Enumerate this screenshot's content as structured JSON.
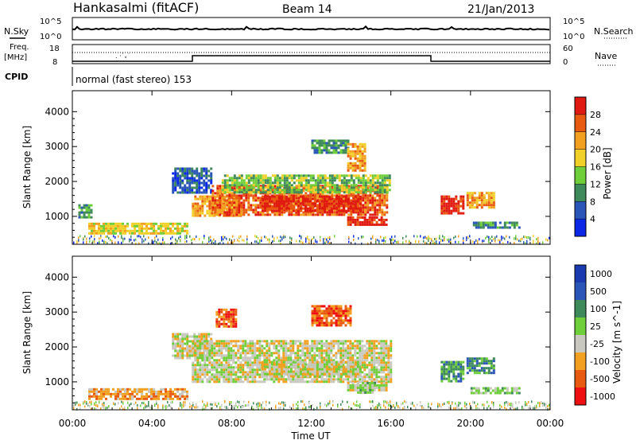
{
  "header": {
    "station": "Hankasalmi (fitACF)",
    "beam": "Beam 14",
    "date": "21/Jan/2013"
  },
  "top_panels": {
    "nsky_label": "N.Sky",
    "nsky_ticks": [
      "10^5",
      "10^0"
    ],
    "nsearch_label": "N.Search",
    "nsearch_ticks": [
      "10^5",
      "10^0"
    ],
    "freq_label": "Freq.",
    "freq_unit": "[MHz]",
    "freq_ticks": [
      "18",
      "8"
    ],
    "nave_label": "Nave",
    "nave_ticks": [
      "60",
      "0"
    ],
    "cpid_label": "CPID",
    "cpid_text": "normal (fast stereo) 153"
  },
  "colors": {
    "power": [
      "#0a28e6",
      "#2a56b8",
      "#3f8a5a",
      "#6fcf3a",
      "#f2d02a",
      "#f2a020",
      "#e85a10",
      "#e01a10"
    ],
    "velocity": [
      "#ee1010",
      "#e85a10",
      "#f2a020",
      "#c8c8c0",
      "#6fcf3a",
      "#3f8a5a",
      "#2a56b8",
      "#1a3ab0"
    ]
  },
  "chart_data": [
    {
      "type": "heatmap",
      "name": "power",
      "ylabel": "Slant Range [km]",
      "yticks": [
        "4000",
        "3000",
        "2000",
        "1000"
      ],
      "ylim": [
        200,
        4600
      ],
      "xticks": [
        "00:00",
        "04:00",
        "08:00",
        "12:00",
        "16:00",
        "20:00",
        "00:00"
      ],
      "xlim": [
        0,
        24
      ],
      "colorbar_label": "Power [dB]",
      "colorbar_ticks": [
        "28",
        "24",
        "20",
        "16",
        "12",
        "8",
        "4"
      ],
      "regions": [
        {
          "x0": 0.8,
          "x1": 5.8,
          "y0": 480,
          "y1": 820,
          "level": 4
        },
        {
          "x0": 0.3,
          "x1": 1.0,
          "y0": 1000,
          "y1": 1350,
          "level": 2
        },
        {
          "x0": 5.0,
          "x1": 7.0,
          "y0": 1700,
          "y1": 2400,
          "level": 1
        },
        {
          "x0": 6.0,
          "x1": 8.5,
          "y0": 1000,
          "y1": 1600,
          "level": 5
        },
        {
          "x0": 7.0,
          "x1": 15.8,
          "y0": 1050,
          "y1": 1900,
          "level": 6
        },
        {
          "x0": 9.5,
          "x1": 14.5,
          "y0": 1150,
          "y1": 1600,
          "level": 7
        },
        {
          "x0": 7.5,
          "x1": 16.0,
          "y0": 1700,
          "y1": 2200,
          "level": 3
        },
        {
          "x0": 12.0,
          "x1": 13.8,
          "y0": 2800,
          "y1": 3200,
          "level": 2
        },
        {
          "x0": 13.8,
          "x1": 14.7,
          "y0": 2300,
          "y1": 3100,
          "level": 5
        },
        {
          "x0": 13.8,
          "x1": 15.8,
          "y0": 750,
          "y1": 1000,
          "level": 7
        },
        {
          "x0": 18.5,
          "x1": 19.6,
          "y0": 1100,
          "y1": 1600,
          "level": 7
        },
        {
          "x0": 19.8,
          "x1": 21.2,
          "y0": 1250,
          "y1": 1700,
          "level": 5
        },
        {
          "x0": 20.0,
          "x1": 22.5,
          "y0": 700,
          "y1": 850,
          "level": 2
        }
      ]
    },
    {
      "type": "heatmap",
      "name": "velocity",
      "ylabel": "Slant Range [km]",
      "yticks": [
        "4000",
        "3000",
        "2000",
        "1000"
      ],
      "ylim": [
        200,
        4600
      ],
      "xticks": [
        "00:00",
        "04:00",
        "08:00",
        "12:00",
        "16:00",
        "20:00",
        "00:00"
      ],
      "xlim": [
        0,
        24
      ],
      "xlabel": "Time UT",
      "colorbar_label": "Velocity [m s^-1]",
      "colorbar_ticks": [
        "1000",
        "500",
        "100",
        "25",
        "-25",
        "-100",
        "-500",
        "-1000"
      ],
      "regions": [
        {
          "x0": 0.8,
          "x1": 5.8,
          "y0": 480,
          "y1": 820,
          "level": 2
        },
        {
          "x0": 5.0,
          "x1": 7.0,
          "y0": 1700,
          "y1": 2400,
          "level": 3
        },
        {
          "x0": 6.0,
          "x1": 16.0,
          "y0": 1000,
          "y1": 2200,
          "level": 3
        },
        {
          "x0": 9.5,
          "x1": 14.5,
          "y0": 1150,
          "y1": 1600,
          "level": 3
        },
        {
          "x0": 12.0,
          "x1": 14.0,
          "y0": 2600,
          "y1": 3200,
          "level": 1
        },
        {
          "x0": 7.2,
          "x1": 8.2,
          "y0": 2600,
          "y1": 3100,
          "level": 1
        },
        {
          "x0": 13.8,
          "x1": 15.8,
          "y0": 750,
          "y1": 1000,
          "level": 3
        },
        {
          "x0": 14.3,
          "x1": 15.2,
          "y0": 700,
          "y1": 1000,
          "level": 4
        },
        {
          "x0": 18.5,
          "x1": 19.6,
          "y0": 1050,
          "y1": 1600,
          "level": 5
        },
        {
          "x0": 19.8,
          "x1": 21.2,
          "y0": 1250,
          "y1": 1700,
          "level": 5
        },
        {
          "x0": 20.0,
          "x1": 22.5,
          "y0": 700,
          "y1": 850,
          "level": 4
        }
      ]
    }
  ]
}
